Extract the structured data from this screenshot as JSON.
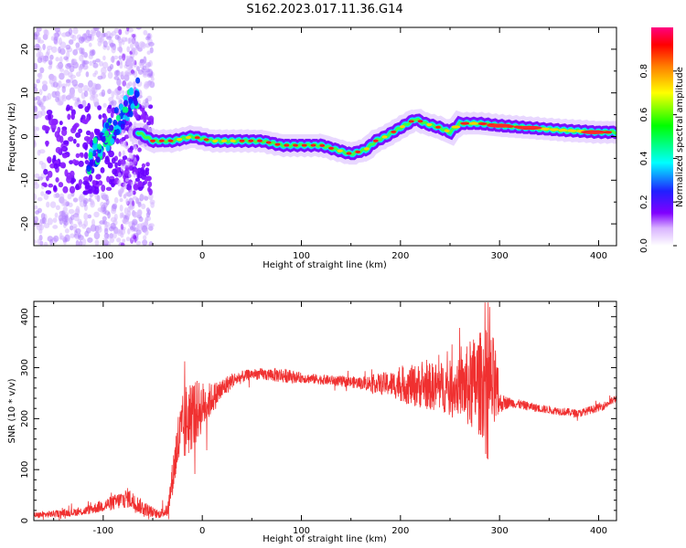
{
  "title": "S162.2023.017.11.36.G14",
  "chart_data": [
    {
      "type": "heatmap",
      "id": "spectrogram",
      "xlabel": "Height of straight line (km)",
      "ylabel": "Frequency (Hz)",
      "xlim": [
        -170,
        418
      ],
      "ylim": [
        -25,
        25
      ],
      "xticks": [
        -100,
        0,
        100,
        200,
        300,
        400
      ],
      "yticks": [
        -20,
        -10,
        0,
        10,
        20
      ],
      "colorbar": {
        "label": "Normalized spectral amplitude",
        "range": [
          0,
          1
        ],
        "ticks": [
          "0.0",
          "0.2",
          "0.4",
          "0.6",
          "0.8"
        ]
      },
      "ridge": {
        "x": [
          -65,
          -50,
          -30,
          -10,
          10,
          40,
          60,
          80,
          100,
          120,
          135,
          150,
          165,
          175,
          185,
          200,
          215,
          225,
          240,
          250,
          260,
          280,
          300,
          330,
          360,
          400,
          418
        ],
        "y": [
          1,
          -1,
          -1,
          0,
          -1,
          -1,
          -1,
          -2,
          -2,
          -2,
          -3,
          -4,
          -3,
          -1,
          0,
          2,
          4,
          3,
          2,
          1,
          3,
          3,
          2.5,
          2,
          1.5,
          1,
          1
        ]
      }
    },
    {
      "type": "line",
      "id": "snr",
      "xlabel": "Height of straight line (km)",
      "ylabel": "SNR (10 * v/v)",
      "xlim": [
        -170,
        418
      ],
      "ylim": [
        0,
        430
      ],
      "xticks": [
        -100,
        0,
        100,
        200,
        300,
        400
      ],
      "yticks": [
        0,
        100,
        200,
        300,
        400
      ],
      "color": "#f03030",
      "envelope": {
        "x": [
          -170,
          -120,
          -90,
          -75,
          -60,
          -45,
          -35,
          -25,
          -15,
          -5,
          10,
          30,
          50,
          80,
          100,
          130,
          160,
          190,
          210,
          240,
          260,
          270,
          285,
          295,
          300,
          310,
          340,
          380,
          405,
          418
        ],
        "y": [
          10,
          18,
          35,
          45,
          25,
          12,
          20,
          150,
          200,
          215,
          240,
          275,
          288,
          285,
          280,
          275,
          270,
          268,
          265,
          262,
          262,
          265,
          270,
          260,
          230,
          232,
          220,
          210,
          225,
          240
        ],
        "spread": [
          6,
          8,
          15,
          20,
          15,
          8,
          12,
          60,
          80,
          60,
          30,
          15,
          10,
          15,
          10,
          10,
          12,
          25,
          40,
          50,
          55,
          90,
          110,
          100,
          20,
          10,
          8,
          8,
          8,
          8
        ]
      }
    }
  ]
}
